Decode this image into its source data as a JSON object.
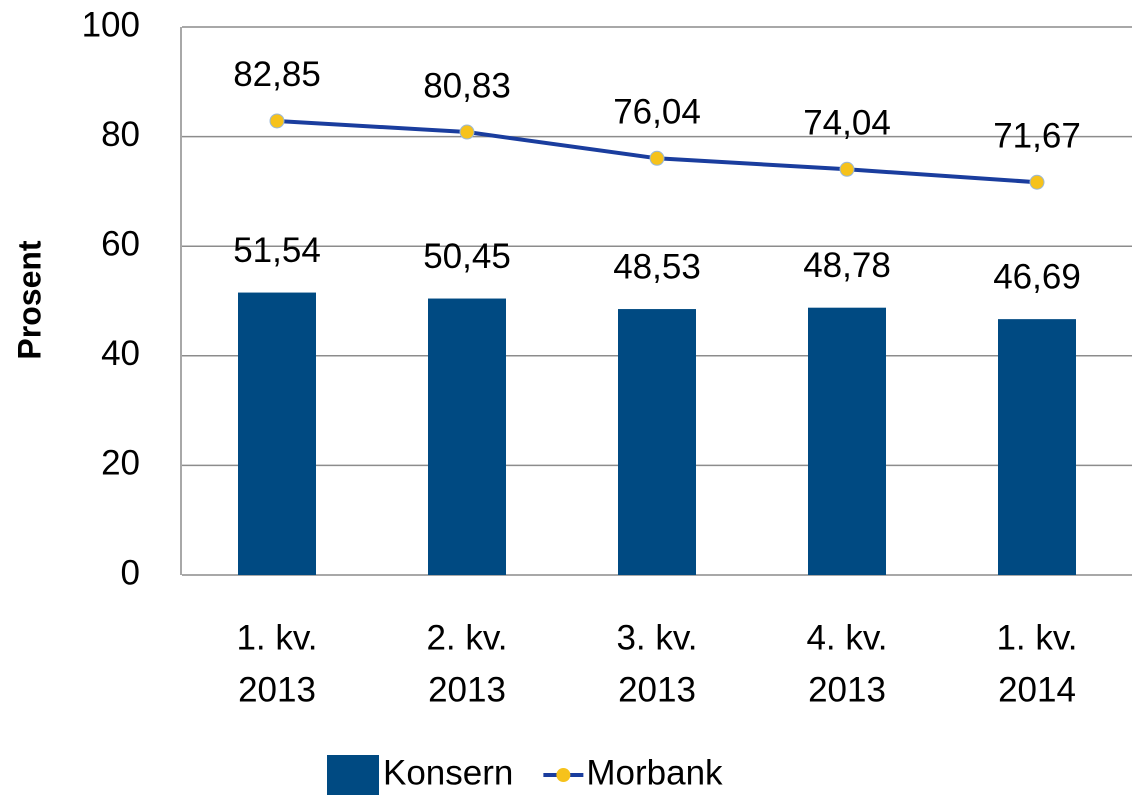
{
  "chart_data": {
    "type": "bar",
    "ylabel": "Prosent",
    "categories": [
      [
        "1. kv.",
        "2013"
      ],
      [
        "2. kv.",
        "2013"
      ],
      [
        "3. kv.",
        "2013"
      ],
      [
        "4. kv.",
        "2013"
      ],
      [
        "1. kv.",
        "2014"
      ]
    ],
    "series": [
      {
        "name": "Konsern",
        "type": "bar",
        "color": "#004a82",
        "values": [
          51.54,
          50.45,
          48.53,
          48.78,
          46.69
        ],
        "value_labels": [
          "51,54",
          "50,45",
          "48,53",
          "48,78",
          "46,69"
        ]
      },
      {
        "name": "Morbank",
        "type": "line",
        "color": "#1a3d9e",
        "marker_color": "#f6c21b",
        "values": [
          82.85,
          80.83,
          76.04,
          74.04,
          71.67
        ],
        "value_labels": [
          "82,85",
          "80,83",
          "76,04",
          "74,04",
          "71,67"
        ]
      }
    ],
    "ylim": [
      0,
      100
    ],
    "yticks": [
      0,
      20,
      40,
      60,
      80,
      100
    ],
    "grid": true,
    "legend": "bottom"
  }
}
